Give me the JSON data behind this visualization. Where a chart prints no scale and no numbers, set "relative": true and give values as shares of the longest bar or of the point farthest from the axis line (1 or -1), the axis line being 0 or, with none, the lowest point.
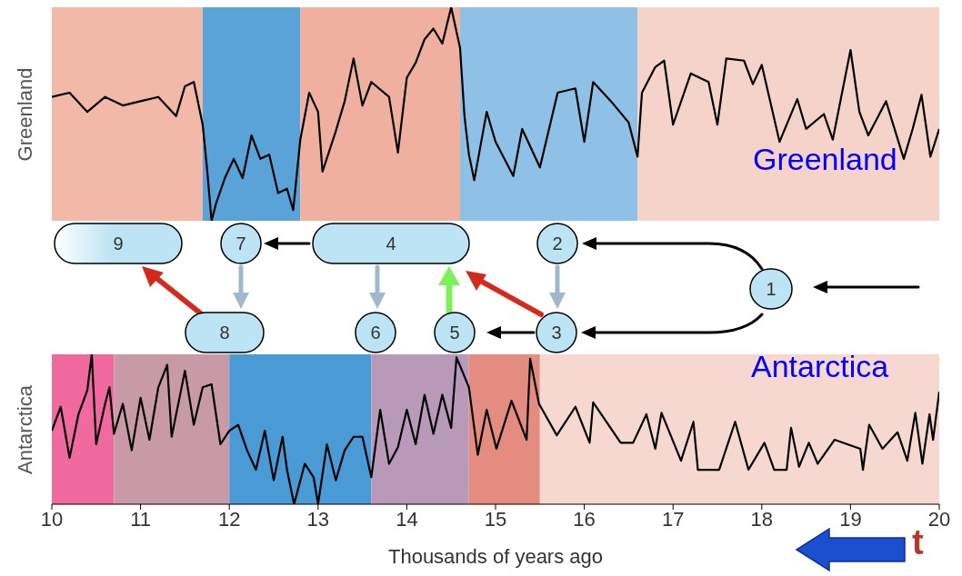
{
  "chart_data": [
    {
      "type": "line",
      "ylabel": "Greenland",
      "annotations": [
        "Greenland"
      ],
      "relative": true,
      "xlim": [
        10,
        20
      ],
      "xticks": [
        10,
        11,
        12,
        13,
        14,
        15,
        16,
        17,
        18,
        19,
        20
      ],
      "tick_labels": false,
      "bands": [
        {
          "axis": "x",
          "from": 10,
          "to": 11.7,
          "color": "#f2b8a8"
        },
        {
          "axis": "x",
          "from": 11.7,
          "to": 12.8,
          "color": "#5aa3d8"
        },
        {
          "axis": "x",
          "from": 12.8,
          "to": 14.6,
          "color": "#f0b0a0"
        },
        {
          "axis": "x",
          "from": 14.6,
          "to": 16.6,
          "color": "#8fc0e6"
        },
        {
          "axis": "x",
          "from": 16.6,
          "to": 20,
          "color": "#f6d3c8"
        }
      ],
      "x": [
        10,
        10.2,
        10.4,
        10.6,
        10.8,
        11,
        11.2,
        11.4,
        11.5,
        11.6,
        11.7,
        11.75,
        11.8,
        11.85,
        11.95,
        12.05,
        12.15,
        12.25,
        12.35,
        12.45,
        12.55,
        12.65,
        12.72,
        12.8,
        12.9,
        13,
        13.05,
        13.2,
        13.3,
        13.4,
        13.5,
        13.6,
        13.8,
        13.9,
        14,
        14.1,
        14.2,
        14.3,
        14.4,
        14.5,
        14.6,
        14.65,
        14.7,
        14.76,
        14.9,
        15,
        15.2,
        15.3,
        15.5,
        15.7,
        15.9,
        16,
        16.1,
        16.3,
        16.5,
        16.6,
        16.65,
        16.8,
        16.9,
        17,
        17.2,
        17.4,
        17.5,
        17.6,
        17.8,
        17.9,
        18,
        18.2,
        18.4,
        18.5,
        18.7,
        18.8,
        19,
        19.1,
        19.2,
        19.4,
        19.6,
        19.7,
        19.8,
        19.9,
        20
      ],
      "series": [
        {
          "color": "#000000",
          "values": [
            0.58,
            0.6,
            0.51,
            0.58,
            0.54,
            0.56,
            0.58,
            0.49,
            0.63,
            0.65,
            0.45,
            0.24,
            0,
            0.08,
            0.2,
            0.29,
            0.2,
            0.4,
            0.29,
            0.31,
            0.13,
            0.15,
            0.05,
            0.38,
            0.6,
            0.51,
            0.23,
            0.42,
            0.56,
            0.76,
            0.54,
            0.65,
            0.58,
            0.32,
            0.67,
            0.74,
            0.85,
            0.9,
            0.83,
            1,
            0.81,
            0.49,
            0.31,
            0.19,
            0.51,
            0.37,
            0.21,
            0.43,
            0.25,
            0.6,
            0.62,
            0.37,
            0.65,
            0.56,
            0.46,
            0.3,
            0.6,
            0.72,
            0.75,
            0.45,
            0.69,
            0.65,
            0.45,
            0.76,
            0.75,
            0.64,
            0.73,
            0.37,
            0.57,
            0.43,
            0.5,
            0.38,
            0.8,
            0.51,
            0.4,
            0.56,
            0.29,
            0.43,
            0.59,
            0.3,
            0.43
          ]
        }
      ]
    },
    {
      "type": "line",
      "ylabel": "Antarctica",
      "xlabel": "Thousands of years ago",
      "annotations": [
        "Antarctica",
        "t"
      ],
      "relative": true,
      "xlim": [
        10,
        20
      ],
      "xticks": [
        10,
        11,
        12,
        13,
        14,
        15,
        16,
        17,
        18,
        19,
        20
      ],
      "tick_labels": "x",
      "bands": [
        {
          "axis": "x",
          "from": 10,
          "to": 10.7,
          "color": "#f06aa0"
        },
        {
          "axis": "x",
          "from": 10.7,
          "to": 12,
          "color": "#c89aa8"
        },
        {
          "axis": "x",
          "from": 12,
          "to": 13.6,
          "color": "#4a9ad6"
        },
        {
          "axis": "x",
          "from": 13.6,
          "to": 14.7,
          "color": "#b89ab8"
        },
        {
          "axis": "x",
          "from": 14.7,
          "to": 15.5,
          "color": "#e48c80"
        },
        {
          "axis": "x",
          "from": 15.5,
          "to": 20,
          "color": "#f6d8d0"
        }
      ],
      "x": [
        10,
        10.1,
        10.2,
        10.3,
        10.4,
        10.45,
        10.5,
        10.6,
        10.65,
        10.7,
        10.8,
        10.9,
        11,
        11.1,
        11.2,
        11.3,
        11.35,
        11.5,
        11.6,
        11.7,
        11.8,
        11.9,
        12,
        12.1,
        12.2,
        12.3,
        12.4,
        12.5,
        12.6,
        12.65,
        12.73,
        12.85,
        12.95,
        13,
        13.1,
        13.2,
        13.3,
        13.4,
        13.5,
        13.6,
        13.7,
        13.8,
        13.9,
        14,
        14.1,
        14.2,
        14.3,
        14.4,
        14.5,
        14.56,
        14.7,
        14.8,
        14.9,
        15.01,
        15.18,
        15.35,
        15.39,
        15.49,
        15.69,
        15.9,
        16.06,
        16.1,
        16.41,
        16.55,
        16.7,
        16.8,
        16.87,
        17.09,
        17.23,
        17.28,
        17.52,
        17.7,
        17.85,
        18.03,
        18.14,
        18.28,
        18.33,
        18.42,
        18.53,
        18.63,
        18.82,
        19.11,
        19.14,
        19.21,
        19.36,
        19.53,
        19.64,
        19.73,
        19.81,
        19.89,
        19.93,
        20
      ],
      "series": [
        {
          "color": "#000000",
          "values": [
            0.49,
            0.65,
            0.31,
            0.6,
            0.76,
            1,
            0.4,
            0.67,
            0.78,
            0.47,
            0.67,
            0.36,
            0.71,
            0.43,
            0.78,
            0.93,
            0.45,
            0.89,
            0.53,
            0.78,
            0.8,
            0.4,
            0.49,
            0.53,
            0.36,
            0.23,
            0.49,
            0.16,
            0.45,
            0.23,
            0,
            0.27,
            0.18,
            0,
            0.4,
            0.16,
            0.36,
            0.45,
            0.45,
            0.18,
            0.63,
            0.27,
            0.38,
            0.63,
            0.4,
            0.73,
            0.47,
            0.73,
            0.51,
            0.98,
            0.78,
            0.33,
            0.63,
            0.37,
            0.69,
            0.43,
            0.97,
            0.67,
            0.46,
            0.65,
            0.41,
            0.68,
            0.41,
            0.41,
            0.6,
            0.37,
            0.61,
            0.29,
            0.55,
            0.23,
            0.23,
            0.55,
            0.23,
            0.41,
            0.23,
            0.23,
            0.51,
            0.25,
            0.41,
            0.27,
            0.43,
            0.37,
            0.23,
            0.53,
            0.37,
            0.48,
            0.29,
            0.61,
            0.27,
            0.6,
            0.43,
            0.75
          ]
        }
      ]
    },
    {
      "type": "other",
      "annotations": [
        "9",
        "7",
        "4",
        "2",
        "1",
        "8",
        "6",
        "5",
        "3"
      ]
    }
  ]
}
